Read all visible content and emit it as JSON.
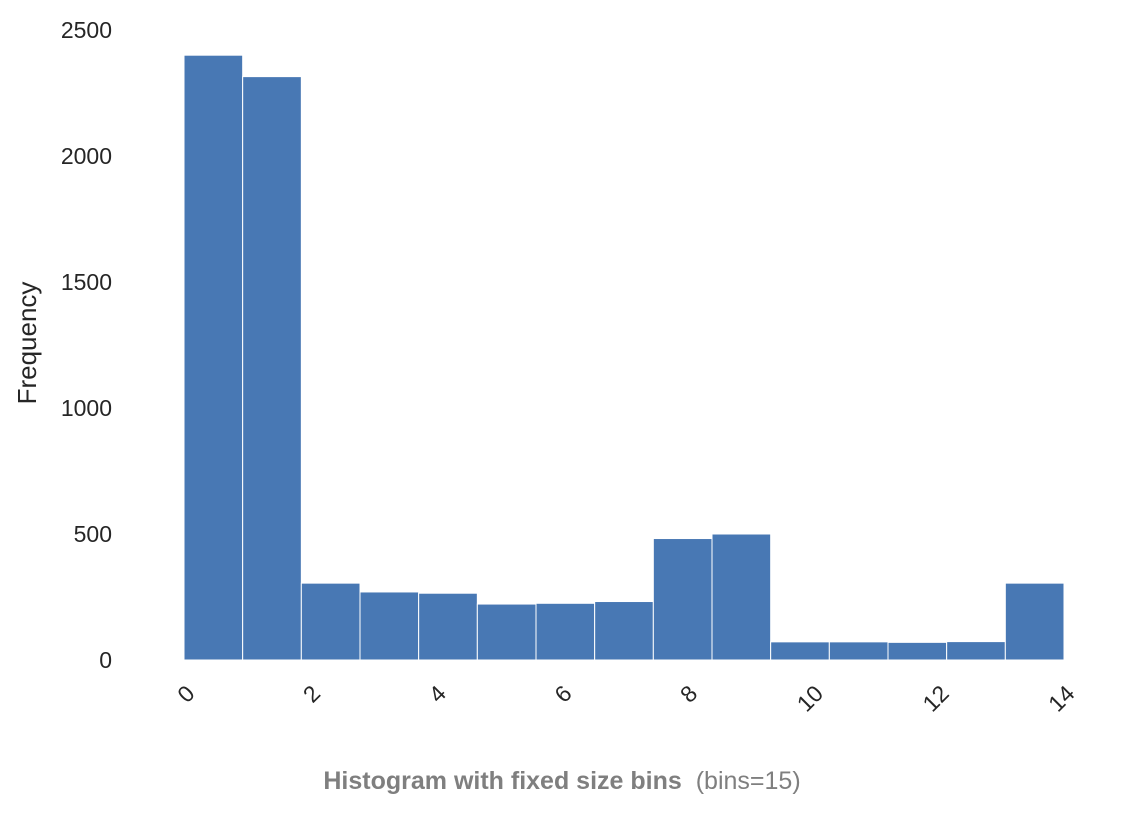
{
  "chart_data": {
    "type": "bar",
    "subtype": "histogram",
    "bins": 15,
    "bin_edges": [
      0,
      0.9333,
      1.8667,
      2.8,
      3.7333,
      4.6667,
      5.6,
      6.5333,
      7.4667,
      8.4,
      9.3333,
      10.2667,
      11.2,
      12.1333,
      13.0667,
      14
    ],
    "values": [
      2400,
      2315,
      305,
      270,
      265,
      222,
      225,
      232,
      482,
      500,
      72,
      72,
      70,
      73,
      305
    ],
    "xlabel": "",
    "ylabel": "Frequency",
    "xlim": [
      0,
      14
    ],
    "ylim": [
      0,
      2500
    ],
    "x_ticks": [
      0,
      2,
      4,
      6,
      8,
      10,
      12,
      14
    ],
    "y_ticks": [
      0,
      500,
      1000,
      1500,
      2000,
      2500
    ],
    "x_tick_rotation": 45,
    "grid": false,
    "legend": "none",
    "bar_color": "#4878b4",
    "bar_edge_color": "#ffffff",
    "caption": {
      "bold": "Histogram with fixed size bins",
      "normal": "(bins=15)"
    }
  }
}
